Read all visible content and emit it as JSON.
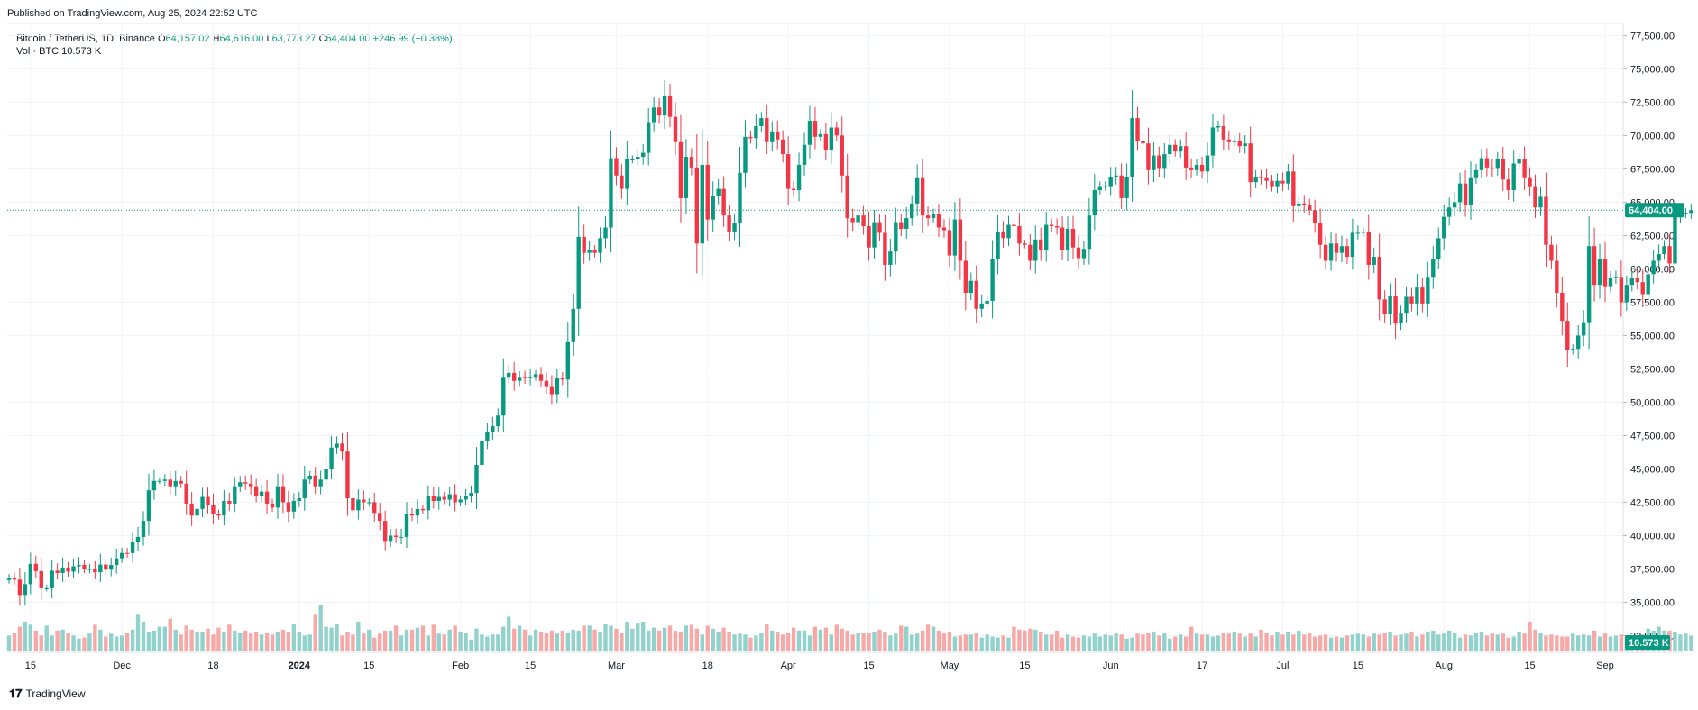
{
  "header": {
    "published": "Published on TradingView.com, Aug 25, 2024 22:52 UTC"
  },
  "legend": {
    "symbol": "Bitcoin / TetherUS, 1D, Binance",
    "o_label": "O",
    "o": "64,157.02",
    "h_label": "H",
    "h": "64,616.00",
    "l_label": "L",
    "l": "63,773.27",
    "c_label": "C",
    "c": "64,404.00",
    "change": "+246.99 (+0.38%)",
    "vol_label": "Vol · BTC",
    "vol_value": "10.573 K"
  },
  "footer": {
    "brand": "TradingView"
  },
  "colors": {
    "up": "#089981",
    "down": "#f23645",
    "up_vol": "#92d2cc",
    "down_vol": "#f7a9a7",
    "grid": "#f0f3fa"
  },
  "chart_data": {
    "type": "candlestick",
    "title": "Bitcoin / TetherUS, 1D, Binance",
    "y_axis": {
      "ticks": [
        "32,500.00",
        "35,000.00",
        "37,500.00",
        "40,000.00",
        "42,500.00",
        "45,000.00",
        "47,500.00",
        "50,000.00",
        "52,500.00",
        "55,000.00",
        "57,500.00",
        "60,000.00",
        "62,500.00",
        "65,000.00",
        "67,500.00",
        "70,000.00",
        "72,500.00",
        "75,000.00",
        "77,500.00"
      ],
      "tick_values": [
        32500,
        35000,
        37500,
        40000,
        42500,
        45000,
        47500,
        50000,
        52500,
        55000,
        57500,
        60000,
        62500,
        65000,
        67500,
        70000,
        72500,
        75000,
        77500
      ],
      "range": [
        31250,
        78400
      ]
    },
    "x_axis": {
      "labels": [
        "15",
        "Dec",
        "18",
        "2024",
        "15",
        "Feb",
        "15",
        "Mar",
        "18",
        "Apr",
        "15",
        "May",
        "15",
        "Jun",
        "17",
        "Jul",
        "15",
        "Aug",
        "15",
        "Sep"
      ],
      "label_bars": [
        4,
        21,
        38,
        54,
        67,
        84,
        97,
        113,
        130,
        145,
        160,
        175,
        189,
        205,
        222,
        237,
        251,
        267,
        283,
        297
      ]
    },
    "last_price": 64404,
    "last_price_label": "64,404.00",
    "last_volume_label": "10.573 K",
    "close": [
      36820,
      36700,
      35550,
      36360,
      37880,
      37340,
      36050,
      36050,
      37370,
      37200,
      37610,
      37300,
      37700,
      37800,
      37500,
      37500,
      37250,
      37830,
      37450,
      37800,
      38300,
      38700,
      38690,
      39500,
      39900,
      41100,
      43400,
      44100,
      44100,
      44200,
      43700,
      44100,
      43900,
      42400,
      41500,
      42000,
      42900,
      42300,
      41600,
      41500,
      42600,
      42400,
      43700,
      44000,
      43900,
      43700,
      43000,
      43300,
      42400,
      42100,
      43700,
      42500,
      41800,
      42600,
      42800,
      44200,
      44500,
      43700,
      44200,
      45000,
      46600,
      46900,
      46300,
      42800,
      41900,
      42700,
      42500,
      42500,
      41700,
      41100,
      39600,
      40000,
      39900,
      39900,
      41600,
      41500,
      42000,
      41900,
      43000,
      42600,
      42900,
      42700,
      43100,
      42500,
      42700,
      43000,
      43200,
      45300,
      47100,
      47800,
      48200,
      49000,
      51900,
      52200,
      51600,
      51900,
      51800,
      51900,
      52100,
      51600,
      51200,
      50600,
      51800,
      51700,
      54500,
      57000,
      62400,
      61200,
      61400,
      61200,
      62300,
      63100,
      68300,
      67000,
      66000,
      68200,
      68200,
      68400,
      68700,
      71000,
      72100,
      71500,
      73000,
      71400,
      69500,
      65300,
      68400,
      67600,
      61900,
      67800,
      63700,
      65500,
      66000,
      64000,
      62800,
      63400,
      67200,
      69900,
      69800,
      70700,
      71300,
      69500,
      70300,
      69700,
      68600,
      66000,
      65900,
      67800,
      69300,
      71100,
      69900,
      70100,
      68900,
      70600,
      70000,
      67000,
      63800,
      63500,
      64000,
      63200,
      61600,
      63500,
      62700,
      60300,
      61300,
      63500,
      63000,
      63800,
      64900,
      66800,
      64000,
      63800,
      64100,
      63100,
      62900,
      61000,
      63700,
      60600,
      58200,
      59100,
      57000,
      57400,
      57600,
      60700,
      62800,
      62300,
      63300,
      63200,
      61900,
      61800,
      60600,
      62200,
      61400,
      63300,
      63200,
      63100,
      61400,
      63000,
      61600,
      60800,
      61500,
      64000,
      65900,
      66200,
      66200,
      66900,
      67000,
      65300,
      66900,
      71300,
      69600,
      69400,
      67400,
      68500,
      67500,
      68600,
      69300,
      68800,
      69200,
      67600,
      67400,
      67800,
      67300,
      68500,
      70600,
      70700,
      69700,
      69500,
      69600,
      69200,
      69400,
      66500,
      66900,
      66800,
      66600,
      66200,
      66600,
      66400,
      67300,
      64700,
      64900,
      64800,
      64400,
      63400,
      61800,
      60600,
      61900,
      61200,
      61700,
      60900,
      62700,
      62700,
      62800,
      60300,
      60900,
      57700,
      56600,
      58000,
      55900,
      56700,
      57900,
      57400,
      58600,
      57400,
      59400,
      60700,
      62300,
      63900,
      64600,
      65000,
      66400,
      64800,
      66800,
      67400,
      68300,
      67600,
      67500,
      68200,
      66700,
      65900,
      67900,
      68200,
      66800,
      66200,
      64600,
      65400,
      61800,
      60600,
      58200,
      56100,
      53900,
      54000,
      55000,
      56000,
      61700,
      58800,
      60700,
      58700,
      59300,
      59400,
      57500,
      58800,
      59300,
      59000,
      58100,
      59600,
      60600,
      61100,
      61700,
      60400,
      64000,
      64100,
      64200,
      64404
    ],
    "volume_scale": [
      0.8,
      0.95,
      1.25,
      1.5,
      1.35,
      1.05,
      0.8,
      1.3,
      0.8,
      1.05,
      1.1,
      0.95,
      0.8,
      0.65,
      0.7,
      0.9,
      1.35,
      1.1,
      0.75,
      0.9,
      0.75,
      0.8,
      0.95,
      1.1,
      1.85,
      1.5,
      1.0,
      1.05,
      1.25,
      1.25,
      1.65,
      1.1,
      0.85,
      1.3,
      1.1,
      1.0,
      1.0,
      1.15,
      0.85,
      1.2,
      1.0,
      1.35,
      1.05,
      0.95,
      1.05,
      0.9,
      1.0,
      0.85,
      0.95,
      0.85,
      1.0,
      1.1,
      1.0,
      1.4,
      1.0,
      0.8,
      0.85,
      1.85,
      2.35,
      1.25,
      1.2,
      1.4,
      0.8,
      1.0,
      0.85,
      1.5,
      0.9,
      1.1,
      0.7,
      0.9,
      1.05,
      1.05,
      1.3,
      0.8,
      1.1,
      1.1,
      1.2,
      1.3,
      0.8,
      1.35,
      0.9,
      0.85,
      1.1,
      1.3,
      1.0,
      0.95,
      0.6,
      1.15,
      0.85,
      0.75,
      0.85,
      0.85,
      1.25,
      1.75,
      1.15,
      1.3,
      1.1,
      0.8,
      1.1,
      1.0,
      0.95,
      1.05,
      0.9,
      1.05,
      0.95,
      1.1,
      1.05,
      1.3,
      1.3,
      1.1,
      1.0,
      1.4,
      1.3,
      1.15,
      0.95,
      1.5,
      1.15,
      1.45,
      1.5,
      1.05,
      1.2,
      1.05,
      1.2,
      1.3,
      1.05,
      1.0,
      1.3,
      1.35,
      1.15,
      0.85,
      1.3,
      1.15,
      1.0,
      1.2,
      1.0,
      0.85,
      0.9,
      0.85,
      0.7,
      0.8,
      0.95,
      1.4,
      1.05,
      1.0,
      0.85,
      0.95,
      1.2,
      1.05,
      1.05,
      0.8,
      1.25,
      1.1,
      1.2,
      0.85,
      1.35,
      1.15,
      1.05,
      0.85,
      0.95,
      0.95,
      0.95,
      1.0,
      1.1,
      1.0,
      0.8,
      0.9,
      1.3,
      1.25,
      0.85,
      0.9,
      1.05,
      1.35,
      1.25,
      1.05,
      0.9,
      1.0,
      0.75,
      0.8,
      0.85,
      0.85,
      0.95,
      0.7,
      0.85,
      0.75,
      0.7,
      0.8,
      0.7,
      1.25,
      1.1,
      1.05,
      1.15,
      1.1,
      1.0,
      0.85,
      0.85,
      1.05,
      0.7,
      0.85,
      0.75,
      0.7,
      0.8,
      0.75,
      0.9,
      0.75,
      0.85,
      0.8,
      0.9,
      0.85,
      0.65,
      0.7,
      0.9,
      0.85,
      0.95,
      1.0,
      0.8,
      0.9,
      0.65,
      0.75,
      0.85,
      0.75,
      1.25,
      0.9,
      0.85,
      0.85,
      0.75,
      0.8,
      0.95,
      0.9,
      1.0,
      0.9,
      0.75,
      0.9,
      0.75,
      1.1,
      0.95,
      0.8,
      1.0,
      0.85,
      1.0,
      0.85,
      1.05,
      0.85,
      0.95,
      0.75,
      0.8,
      0.85,
      0.7,
      0.75,
      0.7,
      0.8,
      0.85,
      0.9,
      0.85,
      0.75,
      0.9,
      0.85,
      0.95,
      1.0,
      0.8,
      0.85,
      0.9,
      1.0,
      0.75,
      0.85,
      1.0,
      1.05,
      0.85,
      0.9,
      1.05,
      0.95,
      0.7,
      0.85,
      0.8,
      0.95,
      1.0,
      0.8,
      0.9,
      0.85,
      0.9,
      0.7,
      0.75,
      1.0,
      0.9,
      1.5,
      1.1,
      0.95,
      0.8,
      0.85,
      0.8,
      0.75,
      0.75,
      0.9,
      0.8,
      0.85,
      0.8,
      1.05,
      0.75,
      0.9,
      0.75,
      0.8,
      0.85,
      0.7,
      0.75,
      0.8,
      0.85,
      1.15,
      1.05,
      1.25,
      1.05,
      1.05,
      1.0,
      0.85,
      0.9,
      0.8,
      0.75,
      0.85,
      0.75,
      0.8,
      0.75,
      0.8,
      0.65,
      0.7,
      0.7
    ]
  }
}
